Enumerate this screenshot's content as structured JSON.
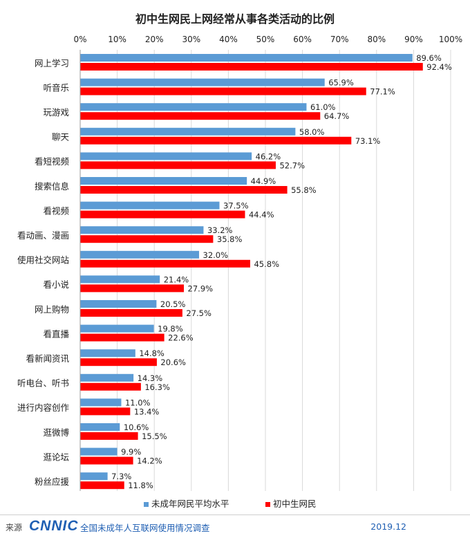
{
  "chart_data": {
    "type": "bar",
    "orientation": "horizontal",
    "title": "初中生网民上网经常从事各类活动的比例",
    "xlim": [
      0,
      100
    ],
    "xticks": [
      "0%",
      "10%",
      "20%",
      "30%",
      "40%",
      "50%",
      "60%",
      "70%",
      "80%",
      "90%",
      "100%"
    ],
    "categories": [
      "网上学习",
      "听音乐",
      "玩游戏",
      "聊天",
      "看短视频",
      "搜索信息",
      "看视频",
      "看动画、漫画",
      "使用社交网站",
      "看小说",
      "网上购物",
      "看直播",
      "看新闻资讯",
      "听电台、听书",
      "进行内容创作",
      "逛微博",
      "逛论坛",
      "粉丝应援"
    ],
    "series": [
      {
        "name": "未成年网民平均水平",
        "color": "#5b9bd5",
        "values": [
          89.6,
          65.9,
          61.0,
          58.0,
          46.2,
          44.9,
          37.5,
          33.2,
          32.0,
          21.4,
          20.5,
          19.8,
          14.8,
          14.3,
          11.0,
          10.6,
          9.9,
          7.3
        ]
      },
      {
        "name": "初中生网民",
        "color": "#ff0000",
        "values": [
          92.4,
          77.1,
          64.7,
          73.1,
          52.7,
          55.8,
          44.4,
          35.8,
          45.8,
          27.9,
          27.5,
          22.6,
          20.6,
          16.3,
          13.4,
          15.5,
          14.2,
          11.8
        ]
      }
    ],
    "legend": "bottom-center",
    "grid": true
  },
  "footer": {
    "source_label": "来源",
    "logo_text": "CNNIC",
    "description": "全国未成年人互联网使用情况调查",
    "date": "2019.12"
  }
}
